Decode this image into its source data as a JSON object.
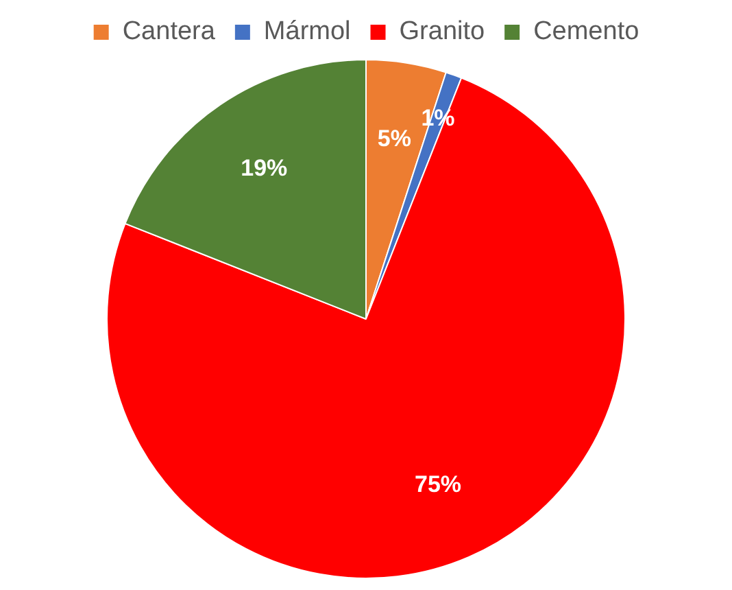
{
  "chart_data": {
    "type": "pie",
    "categories": [
      "Cantera",
      "Mármol",
      "Granito",
      "Cemento"
    ],
    "values": [
      5,
      1,
      75,
      19
    ],
    "colors": [
      "#ed7d31",
      "#4472c4",
      "#ff0000",
      "#548235"
    ],
    "value_labels": [
      "5%",
      "1%",
      "75%",
      "19%"
    ],
    "legend": "top"
  }
}
